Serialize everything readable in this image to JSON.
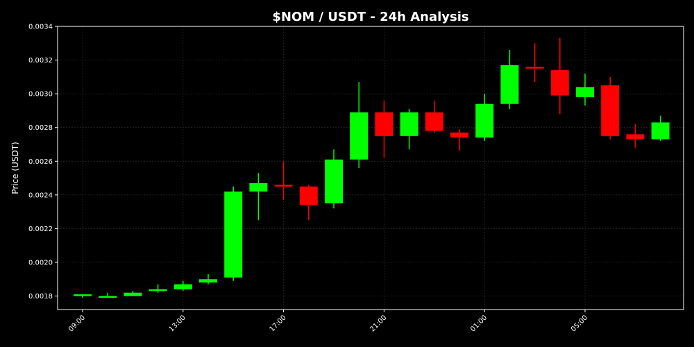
{
  "chart_data": {
    "type": "candlestick",
    "title": "$NOM / USDT - 24h Analysis",
    "xlabel": "",
    "ylabel": "Price (USDT)",
    "ylim": [
      0.00172,
      0.0034
    ],
    "yticks": [
      0.0018,
      0.002,
      0.0022,
      0.0024,
      0.0026,
      0.0028,
      0.003,
      0.0032,
      0.0034
    ],
    "ytick_labels": [
      "0.0018",
      "0.0020",
      "0.0022",
      "0.0024",
      "0.0026",
      "0.0028",
      "0.0030",
      "0.0032",
      "0.0034"
    ],
    "xtick_labels": [
      "09:00",
      "13:00",
      "17:00",
      "21:00",
      "01:00",
      "05:00"
    ],
    "xtick_positions": [
      0,
      4,
      8,
      12,
      16,
      20
    ],
    "grid": true,
    "colors": {
      "up": "#00ff00",
      "down": "#ff0000",
      "background": "#000000",
      "text": "#ffffff",
      "grid": "#333333"
    },
    "candles": [
      {
        "o": 0.0018,
        "h": 0.00181,
        "l": 0.00179,
        "c": 0.00181
      },
      {
        "o": 0.0018,
        "h": 0.00182,
        "l": 0.0018,
        "c": 0.0018
      },
      {
        "o": 0.0018,
        "h": 0.00183,
        "l": 0.0018,
        "c": 0.00182
      },
      {
        "o": 0.00183,
        "h": 0.00187,
        "l": 0.00182,
        "c": 0.00184
      },
      {
        "o": 0.00184,
        "h": 0.00189,
        "l": 0.00183,
        "c": 0.00187
      },
      {
        "o": 0.00188,
        "h": 0.00193,
        "l": 0.00187,
        "c": 0.0019
      },
      {
        "o": 0.00191,
        "h": 0.00245,
        "l": 0.00189,
        "c": 0.00242
      },
      {
        "o": 0.00242,
        "h": 0.00253,
        "l": 0.00225,
        "c": 0.00247
      },
      {
        "o": 0.00246,
        "h": 0.0026,
        "l": 0.00237,
        "c": 0.00245
      },
      {
        "o": 0.00245,
        "h": 0.00246,
        "l": 0.00225,
        "c": 0.00234
      },
      {
        "o": 0.00235,
        "h": 0.00267,
        "l": 0.00232,
        "c": 0.00261
      },
      {
        "o": 0.00261,
        "h": 0.00307,
        "l": 0.00256,
        "c": 0.00289
      },
      {
        "o": 0.00289,
        "h": 0.00296,
        "l": 0.00262,
        "c": 0.00275
      },
      {
        "o": 0.00275,
        "h": 0.00291,
        "l": 0.00267,
        "c": 0.00289
      },
      {
        "o": 0.00289,
        "h": 0.00296,
        "l": 0.00277,
        "c": 0.00278
      },
      {
        "o": 0.00277,
        "h": 0.00279,
        "l": 0.00266,
        "c": 0.00274
      },
      {
        "o": 0.00274,
        "h": 0.003,
        "l": 0.00272,
        "c": 0.00294
      },
      {
        "o": 0.00294,
        "h": 0.00326,
        "l": 0.00291,
        "c": 0.00317
      },
      {
        "o": 0.00316,
        "h": 0.0033,
        "l": 0.00307,
        "c": 0.00315
      },
      {
        "o": 0.00314,
        "h": 0.00333,
        "l": 0.00288,
        "c": 0.00299
      },
      {
        "o": 0.00298,
        "h": 0.00312,
        "l": 0.00293,
        "c": 0.00304
      },
      {
        "o": 0.00305,
        "h": 0.0031,
        "l": 0.00273,
        "c": 0.00275
      },
      {
        "o": 0.00276,
        "h": 0.00282,
        "l": 0.00268,
        "c": 0.00273
      },
      {
        "o": 0.00273,
        "h": 0.00287,
        "l": 0.00272,
        "c": 0.00283
      }
    ]
  }
}
